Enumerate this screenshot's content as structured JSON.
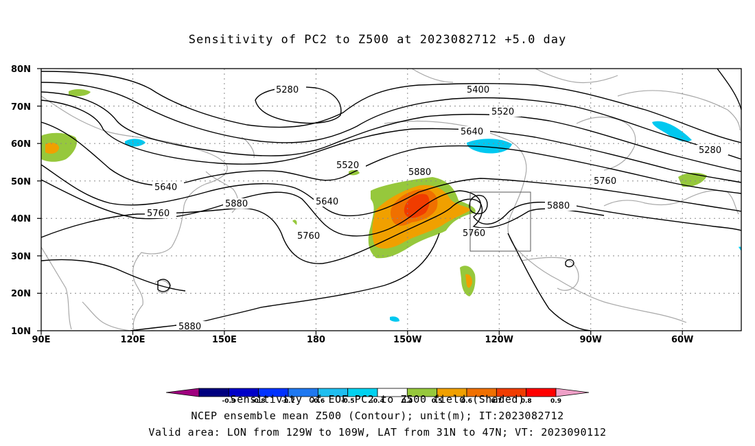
{
  "title": "Sensitivity of PC2 to Z500 at 2023082712 +5.0 day",
  "axes": {
    "lat_labels": [
      "80N",
      "70N",
      "60N",
      "50N",
      "40N",
      "30N",
      "20N",
      "10N"
    ],
    "lon_labels": [
      "90E",
      "120E",
      "150E",
      "180",
      "150W",
      "120W",
      "90W",
      "60W"
    ]
  },
  "contour_labels": {
    "c5280a": "5280",
    "c5400": "5400",
    "c5520a": "5520",
    "c5640a": "5640",
    "c5280b": "5280",
    "c5520b": "5520",
    "c5640b": "5640",
    "c5880a": "5880",
    "c5760a": "5760",
    "c5640c": "5640",
    "c5880b": "5880",
    "c5760b": "5760",
    "c5760c": "5760",
    "c5760d": "5760",
    "c5880c": "5880",
    "c5880d": "5880"
  },
  "colorbar": {
    "ticks": [
      "-0.9",
      "-0.8",
      "-0.7",
      "-0.6",
      "-0.5",
      "-0.4",
      "0.4",
      "0.5",
      "0.6",
      "0.7",
      "0.8",
      "0.9"
    ],
    "colors": [
      "#a0007f",
      "#00007f",
      "#0000c8",
      "#0032ff",
      "#1e78f0",
      "#1ebef0",
      "#00d2f0",
      "#ffffff",
      "#96c83c",
      "#f0a000",
      "#f07000",
      "#f03c00",
      "#ff0000",
      "#f0a0c8"
    ]
  },
  "colors": {
    "shade_green": "#96c83c",
    "shade_orange": "#f0a000",
    "shade_darkorange": "#f07000",
    "shade_red": "#f03c00",
    "shade_cyan": "#00c8f0",
    "coast": "#a8a8a8"
  },
  "captions": {
    "line1": "Sensitivity of EOF PC2 to Z500 field (Shaded)",
    "line2": "NCEP ensemble mean Z500 (Contour); unit(m); IT:2023082712",
    "line3": "Valid area: LON from 129W to 109W, LAT from 31N to 47N; VT: 2023090112"
  }
}
